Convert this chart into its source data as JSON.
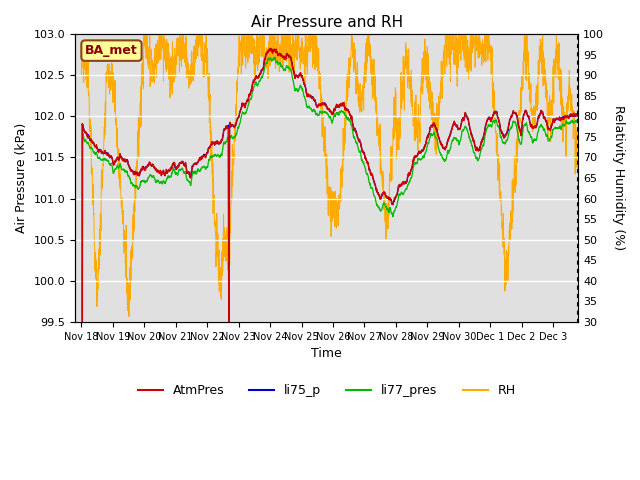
{
  "title": "Air Pressure and RH",
  "xlabel": "Time",
  "ylabel_left": "Air Pressure (kPa)",
  "ylabel_right": "Relativity Humidity (%)",
  "ylim_left": [
    99.5,
    103.0
  ],
  "ylim_right": [
    30,
    100
  ],
  "yticks_left": [
    99.5,
    100.0,
    100.5,
    101.0,
    101.5,
    102.0,
    102.5,
    103.0
  ],
  "yticks_right": [
    30,
    35,
    40,
    45,
    50,
    55,
    60,
    65,
    70,
    75,
    80,
    85,
    90,
    95,
    100
  ],
  "xtick_labels": [
    "Nov 18",
    "Nov 19",
    "Nov 20",
    "Nov 21",
    "Nov 22",
    "Nov 23",
    "Nov 24",
    "Nov 25",
    "Nov 26",
    "Nov 27",
    "Nov 28",
    "Nov 29",
    "Nov 30",
    "Dec 1",
    "Dec 2",
    "Dec 3"
  ],
  "annotation_text": "BA_met",
  "bg_color": "#ffffff",
  "plot_bg_color": "#e0e0e0",
  "grid_color": "#ffffff",
  "colors": {
    "AtmPres": "#cc0000",
    "li75_p": "#0000cc",
    "li77_pres": "#00bb00",
    "RH": "#ffaa00"
  },
  "legend_labels": [
    "AtmPres",
    "li75_p",
    "li77_pres",
    "RH"
  ]
}
